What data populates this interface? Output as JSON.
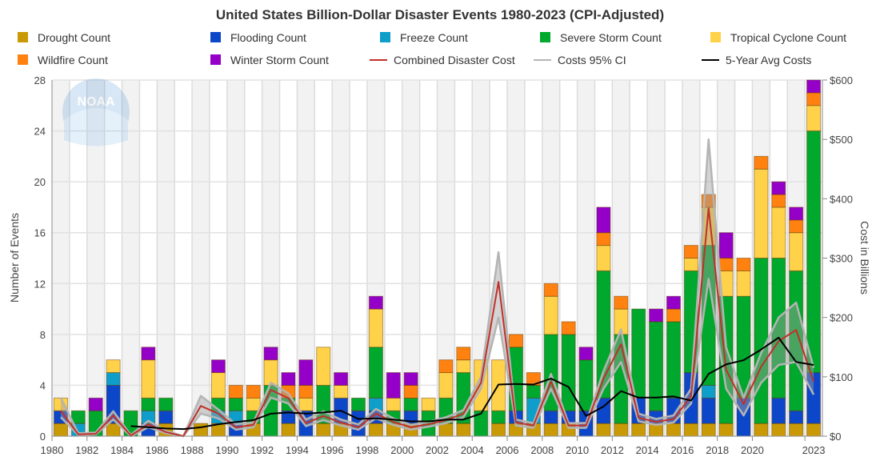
{
  "chart_data": {
    "type": "bar",
    "stacked": true,
    "title": "United States Billion-Dollar Disaster Events 1980-2023 (CPI-Adjusted)",
    "ylabel": "Number of Events",
    "y2label": "Cost in Billions",
    "ylim": [
      0,
      28
    ],
    "yticks": [
      0,
      4,
      8,
      12,
      16,
      20,
      24,
      28
    ],
    "y2lim": [
      0,
      600
    ],
    "y2ticks": [
      "$0",
      "$100",
      "$200",
      "$300",
      "$400",
      "$500",
      "$600"
    ],
    "xticks": [
      "1980",
      "1982",
      "1984",
      "1986",
      "1988",
      "1990",
      "1992",
      "1994",
      "1996",
      "1998",
      "2000",
      "2002",
      "2004",
      "2006",
      "2008",
      "2010",
      "2012",
      "2014",
      "2016",
      "2018",
      "2020",
      "2023"
    ],
    "grid": true,
    "legend_position": "top",
    "watermark": "NOAA",
    "x": [
      1980,
      1981,
      1982,
      1983,
      1984,
      1985,
      1986,
      1987,
      1988,
      1989,
      1990,
      1991,
      1992,
      1993,
      1994,
      1995,
      1996,
      1997,
      1998,
      1999,
      2000,
      2001,
      2002,
      2003,
      2004,
      2005,
      2006,
      2007,
      2008,
      2009,
      2010,
      2011,
      2012,
      2013,
      2014,
      2015,
      2016,
      2017,
      2018,
      2019,
      2020,
      2021,
      2022,
      2023
    ],
    "series": [
      {
        "name": "Drought Count",
        "color": "#c99a06",
        "values": [
          1,
          0,
          0,
          1,
          0,
          0,
          1,
          0,
          1,
          1,
          0,
          1,
          0,
          1,
          0,
          1,
          1,
          0,
          1,
          1,
          1,
          0,
          1,
          1,
          0,
          1,
          1,
          1,
          1,
          1,
          0,
          1,
          1,
          1,
          1,
          1,
          1,
          1,
          1,
          0,
          1,
          1,
          1,
          1
        ]
      },
      {
        "name": "Flooding Count",
        "color": "#0d47c9",
        "values": [
          1,
          0,
          0,
          3,
          0,
          1,
          1,
          0,
          0,
          0,
          1,
          0,
          0,
          1,
          2,
          0,
          2,
          2,
          1,
          0,
          1,
          0,
          0,
          0,
          0,
          0,
          1,
          0,
          1,
          1,
          2,
          2,
          0,
          2,
          1,
          2,
          4,
          2,
          0,
          3,
          0,
          2,
          1,
          4
        ]
      },
      {
        "name": "Freeze Count",
        "color": "#0e9ec9",
        "values": [
          0,
          1,
          0,
          1,
          0,
          1,
          0,
          0,
          0,
          1,
          1,
          0,
          0,
          0,
          0,
          0,
          0,
          0,
          1,
          0,
          0,
          0,
          0,
          0,
          0,
          0,
          0,
          2,
          0,
          0,
          0,
          0,
          0,
          0,
          0,
          0,
          0,
          1,
          0,
          0,
          0,
          0,
          0,
          0
        ]
      },
      {
        "name": "Severe Storm Count",
        "color": "#00a82d",
        "values": [
          0,
          1,
          2,
          0,
          2,
          1,
          1,
          0,
          0,
          1,
          1,
          1,
          4,
          1,
          0,
          3,
          0,
          1,
          4,
          1,
          1,
          2,
          2,
          4,
          2,
          1,
          5,
          1,
          6,
          6,
          4,
          10,
          7,
          7,
          7,
          6,
          8,
          11,
          10,
          8,
          13,
          11,
          11,
          19
        ]
      },
      {
        "name": "Tropical Cyclone Count",
        "color": "#ffd24a",
        "values": [
          1,
          0,
          0,
          1,
          0,
          3,
          0,
          0,
          0,
          2,
          0,
          1,
          2,
          0,
          1,
          3,
          1,
          0,
          3,
          1,
          0,
          1,
          2,
          1,
          4,
          4,
          0,
          0,
          3,
          0,
          0,
          2,
          2,
          0,
          0,
          0,
          1,
          3,
          2,
          2,
          7,
          4,
          3,
          2
        ]
      },
      {
        "name": "Wildfire Count",
        "color": "#ff8210",
        "values": [
          0,
          0,
          0,
          0,
          0,
          0,
          0,
          0,
          0,
          0,
          1,
          1,
          0,
          1,
          1,
          0,
          0,
          0,
          0,
          0,
          1,
          0,
          1,
          1,
          0,
          0,
          1,
          1,
          1,
          1,
          0,
          1,
          1,
          0,
          0,
          1,
          1,
          1,
          1,
          1,
          1,
          1,
          1,
          1
        ]
      },
      {
        "name": "Winter Storm Count",
        "color": "#9400c8",
        "values": [
          0,
          0,
          1,
          0,
          0,
          1,
          0,
          0,
          0,
          1,
          0,
          0,
          1,
          1,
          2,
          0,
          1,
          0,
          1,
          2,
          1,
          0,
          0,
          0,
          0,
          0,
          0,
          0,
          0,
          0,
          1,
          2,
          0,
          0,
          1,
          1,
          0,
          0,
          2,
          0,
          0,
          1,
          1,
          1
        ]
      }
    ],
    "lines": [
      {
        "name": "Combined Disaster Cost",
        "color": "#c0302a",
        "values": [
          43,
          3,
          4,
          35,
          1,
          20,
          7,
          0,
          51,
          38,
          15,
          19,
          78,
          64,
          22,
          34,
          23,
          15,
          38,
          24,
          15,
          20,
          27,
          38,
          90,
          260,
          23,
          18,
          92,
          18,
          18,
          97,
          155,
          31,
          24,
          29,
          67,
          384,
          112,
          54,
          117,
          160,
          179,
          92
        ]
      },
      {
        "name": "Costs 95% CI",
        "color": "#b4b4b4",
        "lower": [
          32,
          2,
          3,
          28,
          0,
          15,
          5,
          0,
          38,
          30,
          11,
          15,
          65,
          55,
          17,
          27,
          18,
          11,
          30,
          19,
          11,
          16,
          22,
          32,
          80,
          200,
          18,
          14,
          80,
          14,
          14,
          80,
          125,
          25,
          19,
          23,
          55,
          265,
          80,
          35,
          90,
          120,
          125,
          70
        ],
        "upper": [
          65,
          5,
          6,
          42,
          2,
          26,
          9,
          0,
          68,
          45,
          20,
          23,
          90,
          72,
          28,
          42,
          28,
          20,
          46,
          30,
          19,
          24,
          32,
          44,
          100,
          310,
          28,
          22,
          105,
          22,
          22,
          110,
          180,
          38,
          29,
          35,
          80,
          500,
          150,
          65,
          140,
          200,
          225,
          115
        ]
      },
      {
        "name": "5-Year Avg Costs",
        "color": "#000000",
        "values": [
          null,
          null,
          null,
          null,
          17,
          15,
          13,
          12,
          15,
          20,
          24,
          27,
          38,
          40,
          38,
          40,
          43,
          29,
          30,
          28,
          25,
          25,
          28,
          28,
          38,
          87,
          88,
          87,
          97,
          83,
          34,
          50,
          76,
          65,
          65,
          67,
          60,
          105,
          121,
          128,
          146,
          166,
          125,
          120
        ]
      }
    ]
  }
}
